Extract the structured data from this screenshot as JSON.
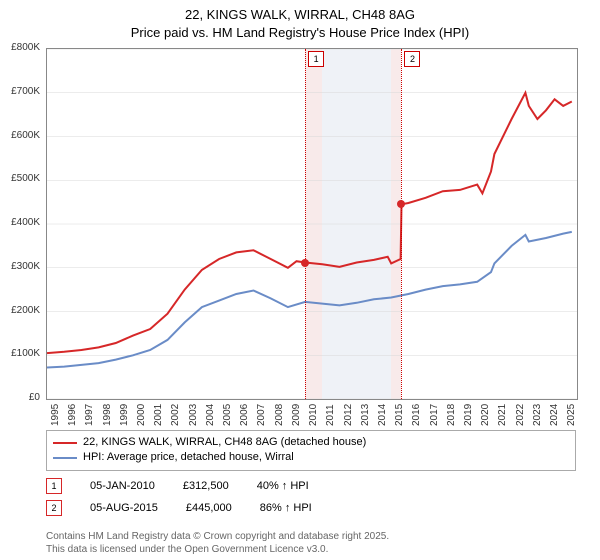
{
  "title_line1": "22, KINGS WALK, WIRRAL, CH48 8AG",
  "title_line2": "Price paid vs. HM Land Registry's House Price Index (HPI)",
  "chart": {
    "type": "line",
    "x_min": 1995,
    "x_max": 2025.8,
    "y_min": 0,
    "y_max": 800,
    "y_ticks": [
      0,
      100,
      200,
      300,
      400,
      500,
      600,
      700,
      800
    ],
    "y_tick_labels": [
      "£0",
      "£100K",
      "£200K",
      "£300K",
      "£400K",
      "£500K",
      "£600K",
      "£700K",
      "£800K"
    ],
    "x_ticks": [
      1995,
      1996,
      1997,
      1998,
      1999,
      2000,
      2001,
      2002,
      2003,
      2004,
      2005,
      2006,
      2007,
      2008,
      2009,
      2010,
      2011,
      2012,
      2013,
      2014,
      2015,
      2016,
      2017,
      2018,
      2019,
      2020,
      2021,
      2022,
      2023,
      2024,
      2025
    ],
    "grid_color": "#d8d8d8",
    "series": [
      {
        "name": "property",
        "color": "#d62728",
        "width": 2,
        "points": [
          [
            1995,
            105
          ],
          [
            1996,
            108
          ],
          [
            1997,
            112
          ],
          [
            1998,
            118
          ],
          [
            1999,
            128
          ],
          [
            2000,
            145
          ],
          [
            2001,
            160
          ],
          [
            2002,
            195
          ],
          [
            2003,
            250
          ],
          [
            2004,
            295
          ],
          [
            2005,
            320
          ],
          [
            2006,
            335
          ],
          [
            2007,
            340
          ],
          [
            2008,
            320
          ],
          [
            2009,
            300
          ],
          [
            2009.5,
            315
          ],
          [
            2010,
            312
          ],
          [
            2010.5,
            310
          ],
          [
            2011,
            308
          ],
          [
            2012,
            302
          ],
          [
            2013,
            312
          ],
          [
            2014,
            318
          ],
          [
            2014.8,
            325
          ],
          [
            2015,
            310
          ],
          [
            2015.55,
            320
          ],
          [
            2015.6,
            445
          ],
          [
            2016,
            448
          ],
          [
            2017,
            460
          ],
          [
            2018,
            475
          ],
          [
            2019,
            478
          ],
          [
            2020,
            490
          ],
          [
            2020.3,
            470
          ],
          [
            2020.8,
            520
          ],
          [
            2021,
            560
          ],
          [
            2022,
            640
          ],
          [
            2022.8,
            700
          ],
          [
            2023,
            670
          ],
          [
            2023.5,
            640
          ],
          [
            2024,
            660
          ],
          [
            2024.5,
            685
          ],
          [
            2025,
            670
          ],
          [
            2025.5,
            680
          ]
        ]
      },
      {
        "name": "hpi",
        "color": "#6a8cc7",
        "width": 2,
        "points": [
          [
            1995,
            72
          ],
          [
            1996,
            74
          ],
          [
            1997,
            78
          ],
          [
            1998,
            82
          ],
          [
            1999,
            90
          ],
          [
            2000,
            100
          ],
          [
            2001,
            112
          ],
          [
            2002,
            135
          ],
          [
            2003,
            175
          ],
          [
            2004,
            210
          ],
          [
            2005,
            225
          ],
          [
            2006,
            240
          ],
          [
            2007,
            248
          ],
          [
            2008,
            230
          ],
          [
            2009,
            210
          ],
          [
            2010,
            222
          ],
          [
            2011,
            218
          ],
          [
            2012,
            214
          ],
          [
            2013,
            220
          ],
          [
            2014,
            228
          ],
          [
            2015,
            232
          ],
          [
            2016,
            240
          ],
          [
            2017,
            250
          ],
          [
            2018,
            258
          ],
          [
            2019,
            262
          ],
          [
            2020,
            268
          ],
          [
            2020.8,
            290
          ],
          [
            2021,
            310
          ],
          [
            2022,
            350
          ],
          [
            2022.8,
            375
          ],
          [
            2023,
            360
          ],
          [
            2024,
            368
          ],
          [
            2025,
            378
          ],
          [
            2025.5,
            382
          ]
        ]
      }
    ],
    "bands": [
      {
        "from": 2010,
        "to": 2011,
        "hl": true
      },
      {
        "from": 2011,
        "to": 2012,
        "hl": false
      },
      {
        "from": 2012,
        "to": 2013,
        "hl": false
      },
      {
        "from": 2013,
        "to": 2014,
        "hl": false
      },
      {
        "from": 2014,
        "to": 2015,
        "hl": false
      },
      {
        "from": 2015,
        "to": 2015.6,
        "hl": true
      }
    ],
    "markers": [
      {
        "num": "1",
        "x": 2010.0,
        "y": 312,
        "color": "#d62728"
      },
      {
        "num": "2",
        "x": 2015.6,
        "y": 445,
        "color": "#d62728"
      }
    ]
  },
  "legend": {
    "series1_label": "22, KINGS WALK, WIRRAL, CH48 8AG (detached house)",
    "series1_color": "#d62728",
    "series2_label": "HPI: Average price, detached house, Wirral",
    "series2_color": "#6a8cc7"
  },
  "sales": [
    {
      "num": "1",
      "date": "05-JAN-2010",
      "price": "£312,500",
      "delta": "40% ↑ HPI",
      "border": "#d62728"
    },
    {
      "num": "2",
      "date": "05-AUG-2015",
      "price": "£445,000",
      "delta": "86% ↑ HPI",
      "border": "#d62728"
    }
  ],
  "footer1": "Contains HM Land Registry data © Crown copyright and database right 2025.",
  "footer2": "This data is licensed under the Open Government Licence v3.0."
}
